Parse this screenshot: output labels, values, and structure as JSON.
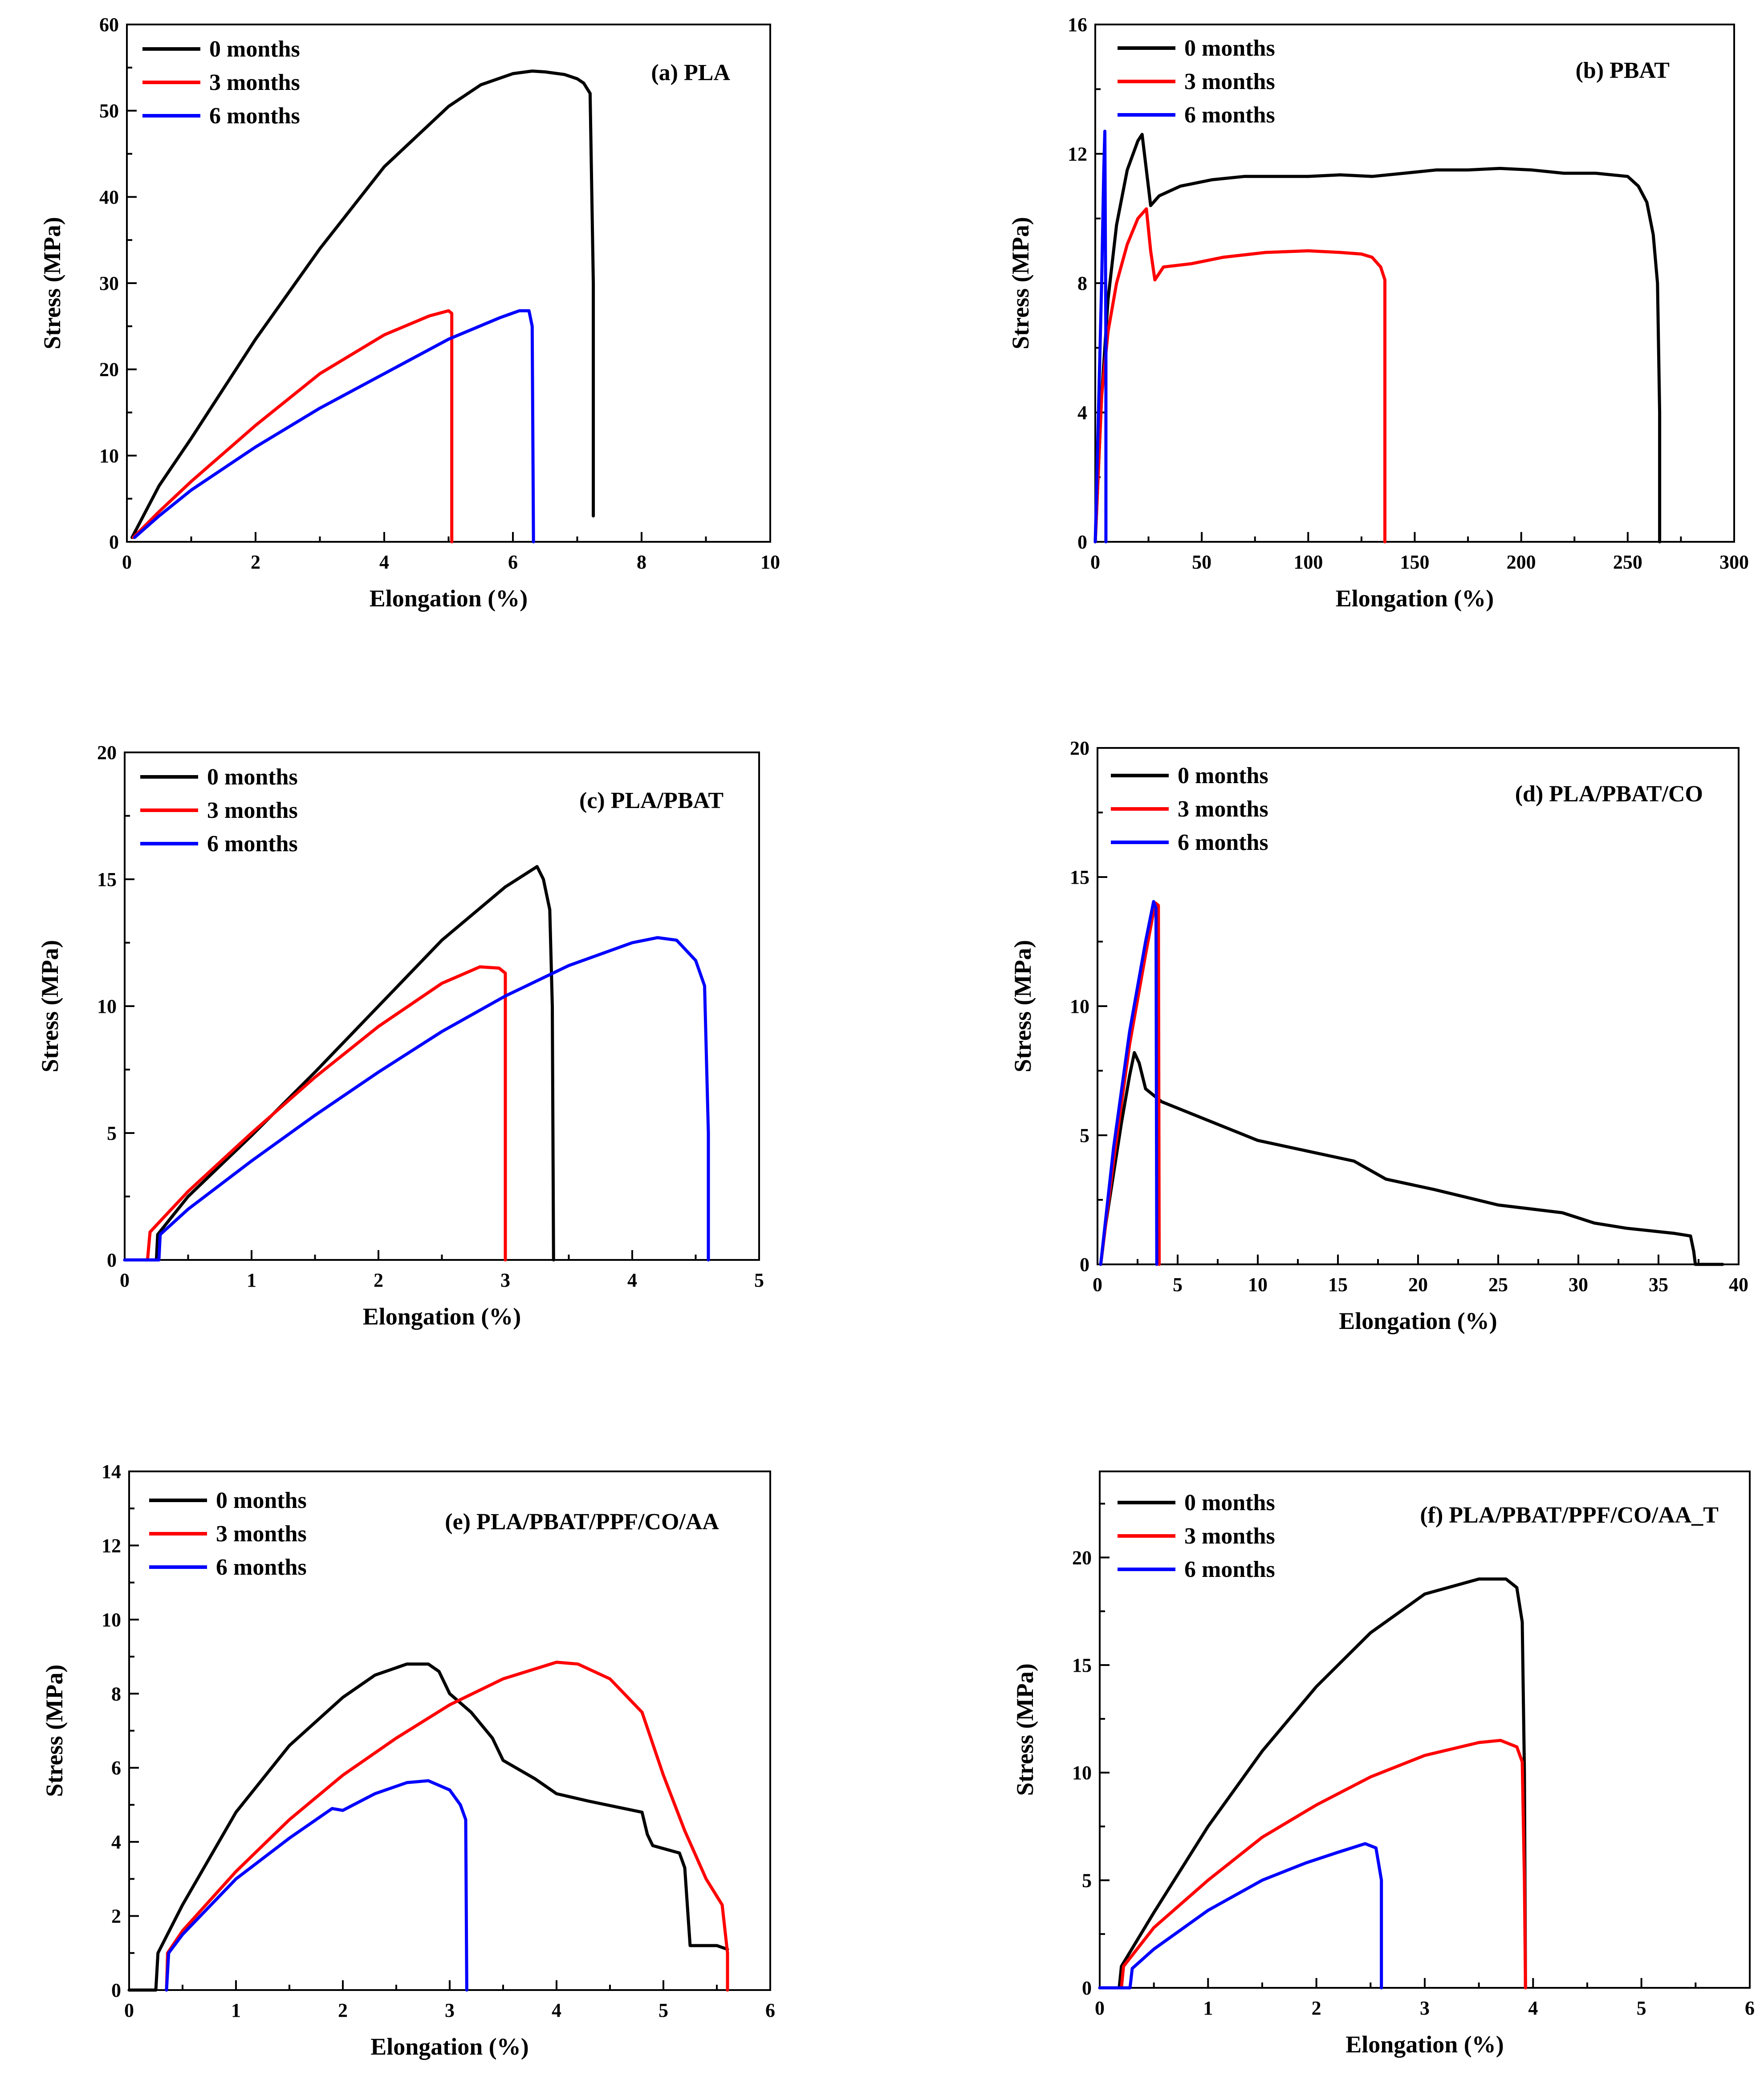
{
  "figure": {
    "description_panels": [
      "a",
      "b",
      "c",
      "d",
      "e",
      "f"
    ]
  },
  "chart_data": [
    {
      "type": "line",
      "title": "(a) PLA",
      "xlabel": "Elongation (%)",
      "ylabel": "Stress (MPa)",
      "xlim": [
        0,
        10
      ],
      "ylim": [
        0,
        60
      ],
      "xticks": [
        0,
        2,
        4,
        6,
        8,
        10
      ],
      "yticks": [
        0,
        10,
        20,
        30,
        40,
        50,
        60
      ],
      "legend_position": "top-left",
      "series": [
        {
          "name": "0 months",
          "color": "#000000",
          "x": [
            0.08,
            0.5,
            1,
            2,
            3,
            4,
            5,
            5.5,
            6,
            6.3,
            6.5,
            6.8,
            7.0,
            7.1,
            7.2,
            7.25,
            7.25
          ],
          "y": [
            0.5,
            6.5,
            12,
            23.5,
            34,
            43.5,
            50.5,
            53,
            54.3,
            54.6,
            54.5,
            54.2,
            53.7,
            53.2,
            52,
            30,
            3
          ]
        },
        {
          "name": "3 months",
          "color": "#ff0000",
          "x": [
            0.1,
            0.5,
            1,
            2,
            3,
            4,
            4.7,
            5.0,
            5.05,
            5.05
          ],
          "y": [
            0.5,
            3.5,
            7,
            13.5,
            19.5,
            24,
            26.2,
            26.8,
            26.5,
            0
          ]
        },
        {
          "name": "6 months",
          "color": "#0000ff",
          "x": [
            0.12,
            0.5,
            1,
            2,
            3,
            4,
            5,
            5.8,
            6.1,
            6.25,
            6.3,
            6.32
          ],
          "y": [
            0.5,
            3,
            6,
            11,
            15.5,
            19.5,
            23.5,
            26,
            26.8,
            26.8,
            25,
            0
          ]
        }
      ]
    },
    {
      "type": "line",
      "title": "(b) PBAT",
      "xlabel": "Elongation (%)",
      "ylabel": "Stress (MPa)",
      "xlim": [
        0,
        300
      ],
      "ylim": [
        0,
        16
      ],
      "xticks": [
        0,
        50,
        100,
        150,
        200,
        250,
        300
      ],
      "yticks": [
        0,
        4,
        8,
        12,
        16
      ],
      "legend_position": "top-left",
      "series": [
        {
          "name": "0 months",
          "color": "#000000",
          "x": [
            0,
            3,
            6,
            10,
            15,
            20,
            22,
            24,
            26,
            30,
            40,
            55,
            70,
            85,
            100,
            115,
            130,
            145,
            160,
            175,
            190,
            205,
            220,
            235,
            250,
            255,
            259,
            262,
            264,
            265,
            265
          ],
          "y": [
            0,
            4.5,
            7.5,
            9.8,
            11.5,
            12.4,
            12.6,
            11.5,
            10.4,
            10.7,
            11.0,
            11.2,
            11.3,
            11.3,
            11.3,
            11.35,
            11.3,
            11.4,
            11.5,
            11.5,
            11.55,
            11.5,
            11.4,
            11.4,
            11.3,
            11.0,
            10.5,
            9.5,
            8,
            4,
            0
          ]
        },
        {
          "name": "3 months",
          "color": "#ff0000",
          "x": [
            0,
            3,
            6,
            10,
            15,
            20,
            24,
            26,
            28,
            32,
            45,
            60,
            80,
            100,
            115,
            125,
            130,
            134,
            136,
            136
          ],
          "y": [
            0,
            4.5,
            6.5,
            8.0,
            9.2,
            10.0,
            10.3,
            9.0,
            8.1,
            8.5,
            8.6,
            8.8,
            8.95,
            9.0,
            8.95,
            8.9,
            8.8,
            8.5,
            8.1,
            0
          ]
        },
        {
          "name": "6 months",
          "color": "#0000ff",
          "x": [
            0,
            1.5,
            3,
            4,
            4.5,
            5,
            5
          ],
          "y": [
            0,
            4,
            8,
            11.5,
            12.7,
            6,
            0
          ]
        }
      ]
    },
    {
      "type": "line",
      "title": "(c) PLA/PBAT",
      "xlabel": "Elongation (%)",
      "ylabel": "Stress (MPa)",
      "xlim": [
        0,
        5
      ],
      "ylim": [
        0,
        20
      ],
      "xticks": [
        0,
        1,
        2,
        3,
        4,
        5
      ],
      "yticks": [
        0,
        5,
        10,
        15,
        20
      ],
      "legend_position": "top-left",
      "series": [
        {
          "name": "0 months",
          "color": "#000000",
          "x": [
            0,
            0.25,
            0.26,
            0.5,
            1,
            1.5,
            2,
            2.5,
            3.0,
            3.25,
            3.3,
            3.35,
            3.37,
            3.38
          ],
          "y": [
            0,
            0,
            1,
            2.5,
            4.9,
            7.4,
            10,
            12.6,
            14.7,
            15.5,
            15.0,
            13.8,
            10,
            0
          ]
        },
        {
          "name": "3 months",
          "color": "#ff0000",
          "x": [
            0,
            0.18,
            0.2,
            0.5,
            1,
            1.5,
            2,
            2.5,
            2.8,
            2.95,
            3.0,
            3.0
          ],
          "y": [
            0,
            0,
            1.1,
            2.7,
            5.0,
            7.2,
            9.2,
            10.9,
            11.55,
            11.5,
            11.3,
            0
          ]
        },
        {
          "name": "6 months",
          "color": "#0000ff",
          "x": [
            0,
            0.27,
            0.28,
            0.5,
            1,
            1.5,
            2,
            2.5,
            3,
            3.5,
            4,
            4.2,
            4.35,
            4.5,
            4.57,
            4.6,
            4.6
          ],
          "y": [
            0,
            0,
            1,
            2.0,
            3.9,
            5.7,
            7.4,
            9.0,
            10.4,
            11.6,
            12.5,
            12.7,
            12.6,
            11.8,
            10.8,
            5,
            0
          ]
        }
      ]
    },
    {
      "type": "line",
      "title": "(d) PLA/PBAT/CO",
      "xlabel": "Elongation (%)",
      "ylabel": "Stress (MPa)",
      "xlim": [
        0,
        40
      ],
      "ylim": [
        0,
        20
      ],
      "xticks": [
        0,
        5,
        10,
        15,
        20,
        25,
        30,
        35,
        40
      ],
      "yticks": [
        0,
        5,
        10,
        15,
        20
      ],
      "legend_position": "top-left",
      "series": [
        {
          "name": "0 months",
          "color": "#000000",
          "x": [
            0.2,
            0.5,
            1,
            1.5,
            2,
            2.3,
            2.6,
            3,
            4,
            6,
            8,
            10,
            13,
            16,
            18,
            21,
            25,
            29,
            31,
            33,
            36,
            37,
            37.2,
            37.3,
            39
          ],
          "y": [
            0,
            1.5,
            3.5,
            5.5,
            7.3,
            8.2,
            7.8,
            6.8,
            6.3,
            5.8,
            5.3,
            4.8,
            4.4,
            4.0,
            3.3,
            2.9,
            2.3,
            2.0,
            1.6,
            1.4,
            1.2,
            1.1,
            0.5,
            0,
            0
          ]
        },
        {
          "name": "3 months",
          "color": "#ff0000",
          "x": [
            0.2,
            1,
            2,
            3,
            3.6,
            3.8,
            3.85
          ],
          "y": [
            0,
            4,
            8.5,
            12,
            14,
            13.9,
            0
          ]
        },
        {
          "name": "6 months",
          "color": "#0000ff",
          "x": [
            0.2,
            1,
            2,
            3,
            3.5,
            3.65,
            3.7
          ],
          "y": [
            0,
            4.5,
            9,
            12.5,
            14.05,
            13.8,
            0
          ]
        }
      ]
    },
    {
      "type": "line",
      "title": "(e) PLA/PBAT/PPF/CO/AA",
      "xlabel": "Elongation (%)",
      "ylabel": "Stress (MPa)",
      "xlim": [
        0,
        6
      ],
      "ylim": [
        0,
        14
      ],
      "xticks": [
        0,
        1,
        2,
        3,
        4,
        5,
        6
      ],
      "yticks": [
        0,
        2,
        4,
        6,
        8,
        10,
        12,
        14
      ],
      "legend_position": "top-left",
      "series": [
        {
          "name": "0 months",
          "color": "#000000",
          "x": [
            0,
            0.25,
            0.27,
            0.5,
            1,
            1.5,
            2,
            2.3,
            2.6,
            2.8,
            2.9,
            3.0,
            3.2,
            3.4,
            3.5,
            3.8,
            4.0,
            4.3,
            4.8,
            4.85,
            4.9,
            5.15,
            5.2,
            5.25,
            5.3,
            5.5,
            5.6
          ],
          "y": [
            0,
            0,
            1,
            2.3,
            4.8,
            6.6,
            7.9,
            8.5,
            8.8,
            8.8,
            8.6,
            8.0,
            7.5,
            6.8,
            6.2,
            5.7,
            5.3,
            5.1,
            4.8,
            4.2,
            3.9,
            3.7,
            3.3,
            1.2,
            1.2,
            1.2,
            1.1
          ]
        },
        {
          "name": "3 months",
          "color": "#ff0000",
          "x": [
            0.35,
            0.36,
            0.5,
            1,
            1.5,
            2,
            2.5,
            3,
            3.5,
            4.0,
            4.2,
            4.5,
            4.8,
            5.0,
            5.2,
            5.4,
            5.55,
            5.6,
            5.6
          ],
          "y": [
            0,
            1,
            1.6,
            3.2,
            4.6,
            5.8,
            6.8,
            7.7,
            8.4,
            8.85,
            8.8,
            8.4,
            7.5,
            5.8,
            4.3,
            3.0,
            2.3,
            1.0,
            0
          ]
        },
        {
          "name": "6 months",
          "color": "#0000ff",
          "x": [
            0.35,
            0.37,
            0.5,
            1,
            1.5,
            1.9,
            2.0,
            2.1,
            2.3,
            2.6,
            2.8,
            3.0,
            3.1,
            3.15,
            3.16
          ],
          "y": [
            0,
            1,
            1.5,
            3.0,
            4.1,
            4.9,
            4.85,
            5.0,
            5.3,
            5.6,
            5.65,
            5.4,
            5.0,
            4.6,
            0
          ]
        }
      ]
    },
    {
      "type": "line",
      "title": "(f) PLA/PBAT/PPF/CO/AA_T",
      "xlabel": "Elongation (%)",
      "ylabel": "Stress (MPa)",
      "xlim": [
        0,
        6
      ],
      "ylim": [
        0,
        24
      ],
      "xticks": [
        0,
        1,
        2,
        3,
        4,
        5,
        6
      ],
      "yticks": [
        0,
        5,
        10,
        15,
        20
      ],
      "legend_position": "top-left",
      "series": [
        {
          "name": "0 months",
          "color": "#000000",
          "x": [
            0,
            0.18,
            0.2,
            0.5,
            1,
            1.5,
            2,
            2.5,
            3,
            3.5,
            3.75,
            3.85,
            3.9,
            3.92,
            3.93
          ],
          "y": [
            0,
            0,
            1,
            3.5,
            7.5,
            11.0,
            14.0,
            16.5,
            18.3,
            19.0,
            19.0,
            18.6,
            17,
            10,
            0
          ]
        },
        {
          "name": "3 months",
          "color": "#ff0000",
          "x": [
            0,
            0.2,
            0.22,
            0.5,
            1,
            1.5,
            2,
            2.5,
            3,
            3.5,
            3.7,
            3.85,
            3.9,
            3.92,
            3.93
          ],
          "y": [
            0,
            0,
            1,
            2.8,
            5.0,
            7.0,
            8.5,
            9.8,
            10.8,
            11.4,
            11.5,
            11.2,
            10.5,
            5,
            0
          ]
        },
        {
          "name": "6 months",
          "color": "#0000ff",
          "x": [
            0,
            0.28,
            0.3,
            0.5,
            1,
            1.5,
            1.9,
            2.2,
            2.45,
            2.55,
            2.6,
            2.6
          ],
          "y": [
            0,
            0,
            0.9,
            1.8,
            3.6,
            5.0,
            5.8,
            6.3,
            6.7,
            6.5,
            5,
            0
          ]
        }
      ]
    }
  ]
}
